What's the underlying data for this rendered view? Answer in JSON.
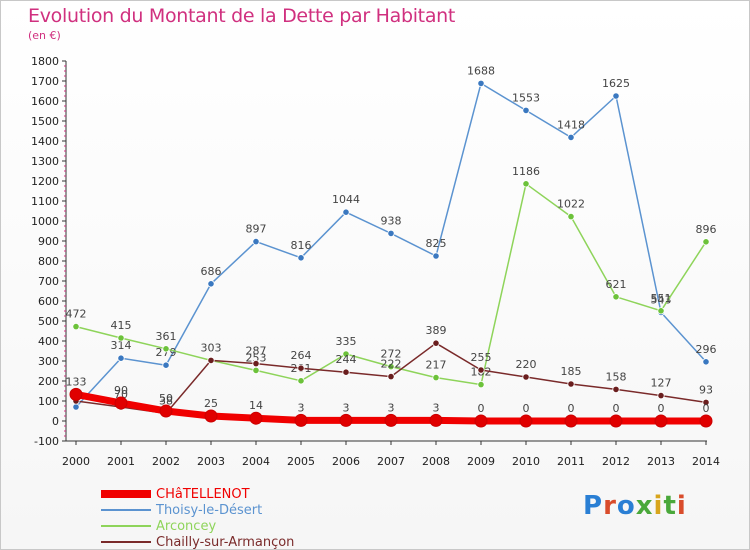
{
  "header": {
    "title": "Evolution du Montant de la Dette par Habitant",
    "subtitle": "(en €)"
  },
  "logo": {
    "text": "Proxiti",
    "letter_colors": [
      "#2a7fd4",
      "#d94c2b",
      "#2a7fd4",
      "#4aa83a",
      "#d8a51c",
      "#4aa83a",
      "#d94c2b"
    ]
  },
  "chart_data": {
    "type": "line",
    "x": [
      2000,
      2001,
      2002,
      2003,
      2004,
      2005,
      2006,
      2007,
      2008,
      2009,
      2010,
      2011,
      2012,
      2013,
      2014
    ],
    "ylim": [
      -100,
      1800
    ],
    "yticks": [
      -100,
      0,
      100,
      200,
      300,
      400,
      500,
      600,
      700,
      800,
      900,
      1000,
      1100,
      1200,
      1300,
      1400,
      1500,
      1600,
      1700,
      1800
    ],
    "grid": false,
    "legend_position": "bottom-left",
    "series": [
      {
        "name": "Thoisy-le-Désert",
        "color": "#5b93d0",
        "marker": "#3a78c0",
        "width": 1.5,
        "values": [
          70,
          314,
          279,
          686,
          897,
          816,
          1044,
          938,
          825,
          1688,
          1553,
          1418,
          1625,
          543,
          296
        ],
        "labels": [
          "",
          "314",
          "279",
          "686",
          "897",
          "816",
          "1044",
          "938",
          "825",
          "1688",
          "1553",
          "1418",
          "1625",
          "543",
          "296"
        ]
      },
      {
        "name": "Arconcey",
        "color": "#8ed45a",
        "marker": "#6cc23a",
        "width": 1.5,
        "values": [
          472,
          415,
          361,
          303,
          253,
          201,
          335,
          272,
          217,
          182,
          1186,
          1022,
          621,
          551,
          896
        ],
        "labels": [
          "472",
          "415",
          "361",
          "",
          "253",
          "201",
          "335",
          "272",
          "217",
          "182",
          "1186",
          "1022",
          "621",
          "551",
          "896"
        ]
      },
      {
        "name": "Chailly-sur-Armançon",
        "color": "#7a2a2a",
        "marker": "#6a1e1e",
        "width": 1.5,
        "values": [
          100,
          70,
          38,
          303,
          287,
          264,
          244,
          222,
          389,
          255,
          220,
          185,
          158,
          127,
          93
        ],
        "labels": [
          "",
          "70",
          "38",
          "303",
          "287",
          "264",
          "244",
          "222",
          "389",
          "255",
          "220",
          "185",
          "158",
          "127",
          "93"
        ]
      },
      {
        "name": "CHâTELLENOT",
        "color": "#f00000",
        "marker": "#e00000",
        "width": 7,
        "values": [
          133,
          90,
          50,
          25,
          14,
          3,
          3,
          3,
          3,
          0,
          0,
          0,
          0,
          0,
          0
        ],
        "labels": [
          "133",
          "90",
          "50",
          "25",
          "14",
          "3",
          "3",
          "3",
          "3",
          "0",
          "0",
          "0",
          "0",
          "0",
          "0"
        ]
      }
    ],
    "legend_order": [
      "CHâTELLENOT",
      "Thoisy-le-Désert",
      "Arconcey",
      "Chailly-sur-Armançon"
    ]
  }
}
